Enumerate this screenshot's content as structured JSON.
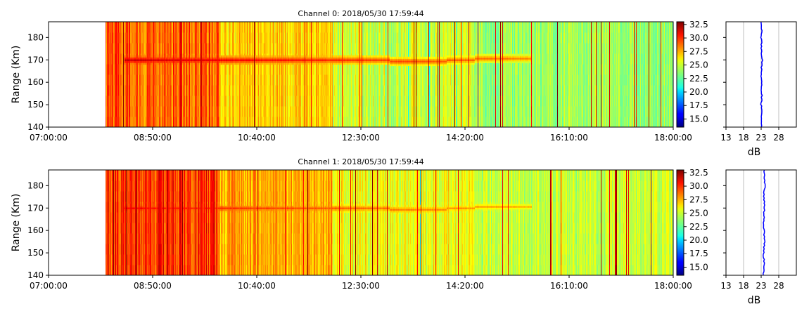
{
  "chart_data": [
    {
      "type": "heatmap",
      "title": "Channel 0: 2018/05/30 17:59:44",
      "ylabel": "Range (Km)",
      "xlim": [
        "07:00:00",
        "18:00:00"
      ],
      "xticks": [
        "07:00:00",
        "08:50:00",
        "10:40:00",
        "12:30:00",
        "14:20:00",
        "16:10:00",
        "18:00:00"
      ],
      "ylim": [
        140,
        187
      ],
      "yticks": [
        140,
        150,
        160,
        170,
        180
      ],
      "data_start_time": "08:00:00",
      "colorbar": {
        "ticks": [
          "15.0",
          "17.5",
          "20.0",
          "22.5",
          "25.0",
          "27.5",
          "30.0",
          "32.5"
        ],
        "range": [
          13.5,
          33.0
        ],
        "colormap": "jet"
      },
      "echo_band": {
        "start_time": "08:20:00",
        "end_time": "15:30:00",
        "range_km": 170,
        "peak_db": 31.5
      },
      "profile": {
        "xlabel": "dB",
        "xticks": [
          13,
          18,
          23,
          28
        ],
        "xlim": [
          13,
          33
        ],
        "color": "#0000ff",
        "mean_db": 23.0,
        "range_km": [
          140,
          145,
          150,
          155,
          160,
          165,
          170,
          175,
          180,
          185,
          187
        ],
        "db": [
          23.0,
          23.1,
          23.0,
          23.2,
          23.1,
          23.0,
          23.3,
          23.1,
          23.0,
          23.2,
          23.1
        ]
      }
    },
    {
      "type": "heatmap",
      "title": "Channel 1: 2018/05/30 17:59:44",
      "ylabel": "Range (Km)",
      "xlim": [
        "07:00:00",
        "18:00:00"
      ],
      "xticks": [
        "07:00:00",
        "08:50:00",
        "10:40:00",
        "12:30:00",
        "14:20:00",
        "16:10:00",
        "18:00:00"
      ],
      "ylim": [
        140,
        187
      ],
      "yticks": [
        140,
        150,
        160,
        170,
        180
      ],
      "data_start_time": "08:00:00",
      "colorbar": {
        "ticks": [
          "15.0",
          "17.5",
          "20.0",
          "22.5",
          "25.0",
          "27.5",
          "30.0",
          "32.5"
        ],
        "range": [
          13.5,
          33.0
        ],
        "colormap": "jet"
      },
      "echo_band": {
        "start_time": "08:20:00",
        "end_time": "15:30:00",
        "range_km": 170,
        "peak_db": 30.5
      },
      "profile": {
        "xlabel": "dB",
        "xticks": [
          13,
          18,
          23,
          28
        ],
        "xlim": [
          13,
          33
        ],
        "color": "#0000ff",
        "mean_db": 23.8,
        "range_km": [
          140,
          145,
          150,
          155,
          160,
          165,
          170,
          175,
          180,
          185,
          187
        ],
        "db": [
          23.6,
          23.8,
          23.7,
          24.0,
          23.8,
          23.7,
          23.9,
          23.8,
          24.0,
          23.9,
          23.8
        ]
      }
    }
  ]
}
